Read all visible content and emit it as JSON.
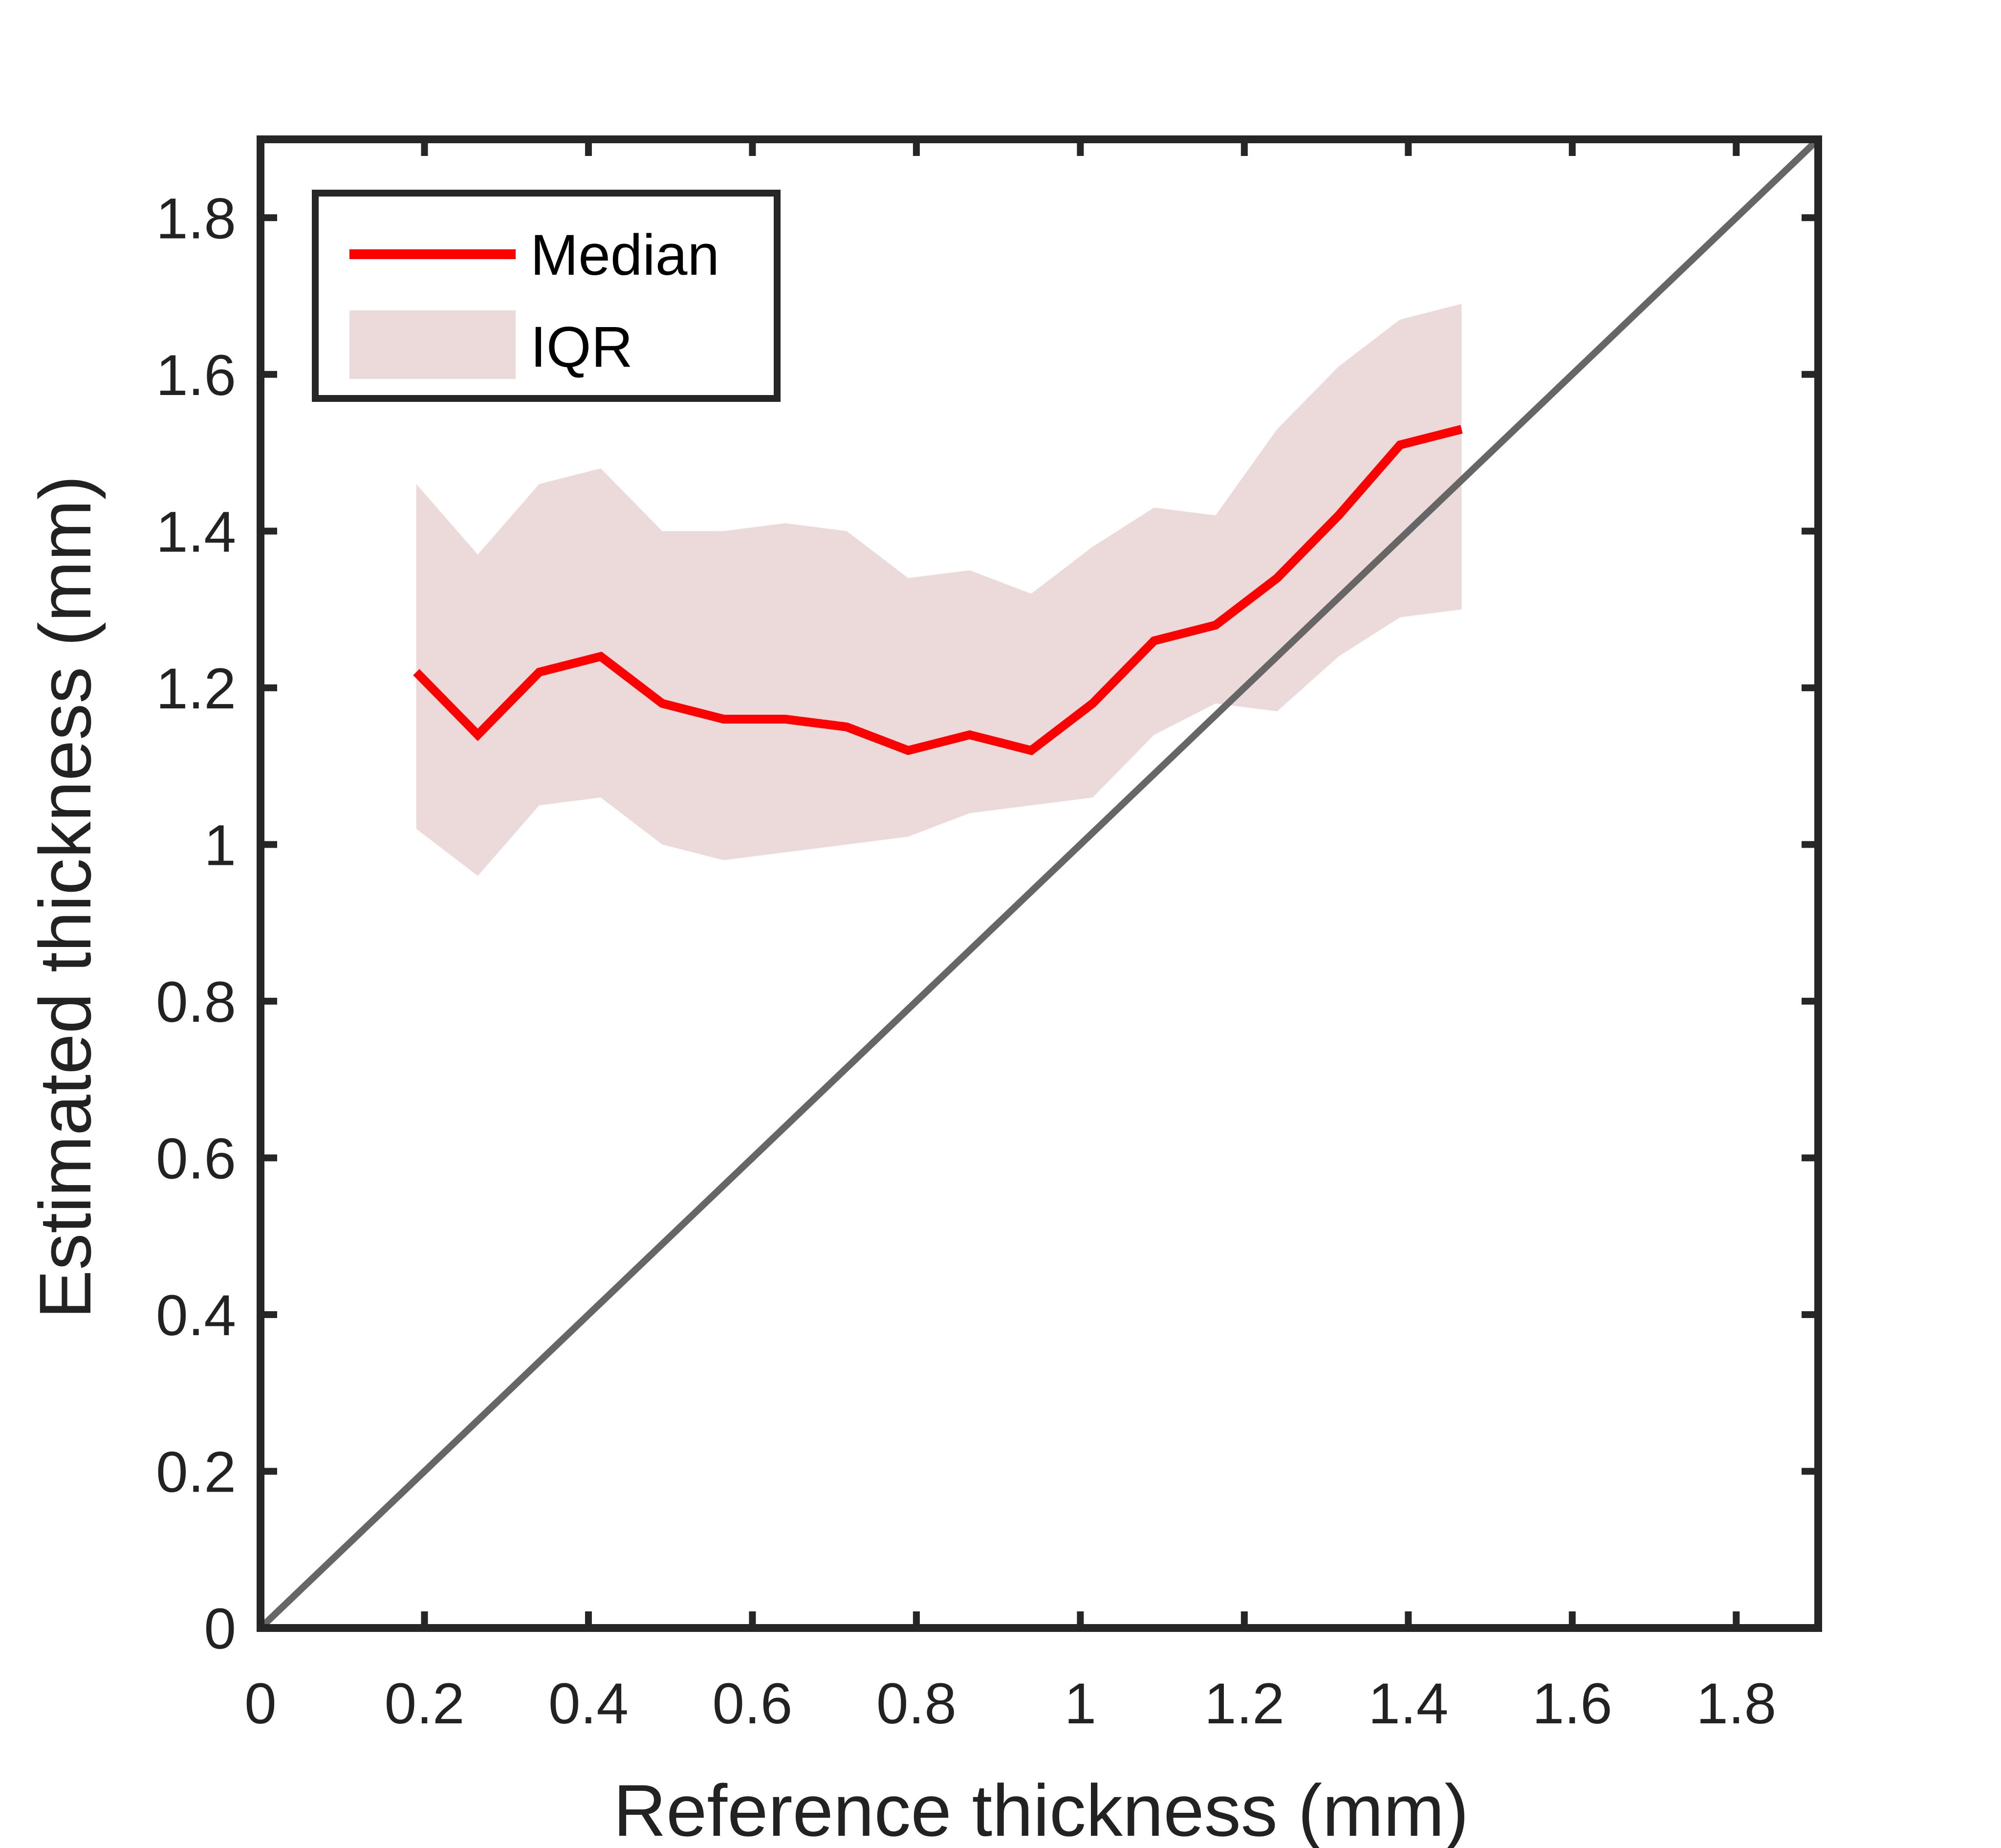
{
  "chart_data": {
    "type": "line",
    "title": "",
    "xlabel": "Reference thickness (mm)",
    "ylabel": "Estimated thickness (mm)",
    "xlim": [
      0,
      1.9
    ],
    "ylim": [
      0,
      1.9
    ],
    "x_ticks": [
      0,
      0.2,
      0.4,
      0.6,
      0.8,
      1.0,
      1.2,
      1.4,
      1.6,
      1.8
    ],
    "x_tick_labels": [
      "0",
      "0.2",
      "0.4",
      "0.6",
      "0.8",
      "1",
      "1.2",
      "1.4",
      "1.6",
      "1.8"
    ],
    "y_ticks": [
      0,
      0.2,
      0.4,
      0.6,
      0.8,
      1.0,
      1.2,
      1.4,
      1.6,
      1.8
    ],
    "y_tick_labels": [
      "0",
      "0.2",
      "0.4",
      "0.6",
      "0.8",
      "1",
      "1.2",
      "1.4",
      "1.6",
      "1.8"
    ],
    "grid": false,
    "legend_position": "top-left",
    "x": [
      0.19,
      0.265,
      0.34,
      0.415,
      0.49,
      0.565,
      0.64,
      0.715,
      0.79,
      0.865,
      0.94,
      1.015,
      1.09,
      1.165,
      1.24,
      1.315,
      1.39,
      1.465
    ],
    "series": [
      {
        "name": "Median",
        "type": "line",
        "color": "#ff0000",
        "values": [
          1.22,
          1.14,
          1.22,
          1.24,
          1.18,
          1.16,
          1.16,
          1.15,
          1.12,
          1.14,
          1.12,
          1.18,
          1.26,
          1.28,
          1.34,
          1.42,
          1.51,
          1.53
        ]
      },
      {
        "name": "IQR",
        "type": "band",
        "color": "#ecd9da",
        "lower": [
          1.02,
          0.96,
          1.05,
          1.06,
          1.0,
          0.98,
          0.99,
          1.0,
          1.01,
          1.04,
          1.05,
          1.06,
          1.14,
          1.18,
          1.17,
          1.24,
          1.29,
          1.3
        ],
        "upper": [
          1.46,
          1.37,
          1.46,
          1.48,
          1.4,
          1.4,
          1.41,
          1.4,
          1.34,
          1.35,
          1.32,
          1.38,
          1.43,
          1.42,
          1.53,
          1.61,
          1.67,
          1.69
        ]
      },
      {
        "name": "identity",
        "type": "reference-line",
        "color": "#666666",
        "x": [
          0,
          1.9
        ],
        "values": [
          0,
          1.9
        ]
      }
    ]
  }
}
